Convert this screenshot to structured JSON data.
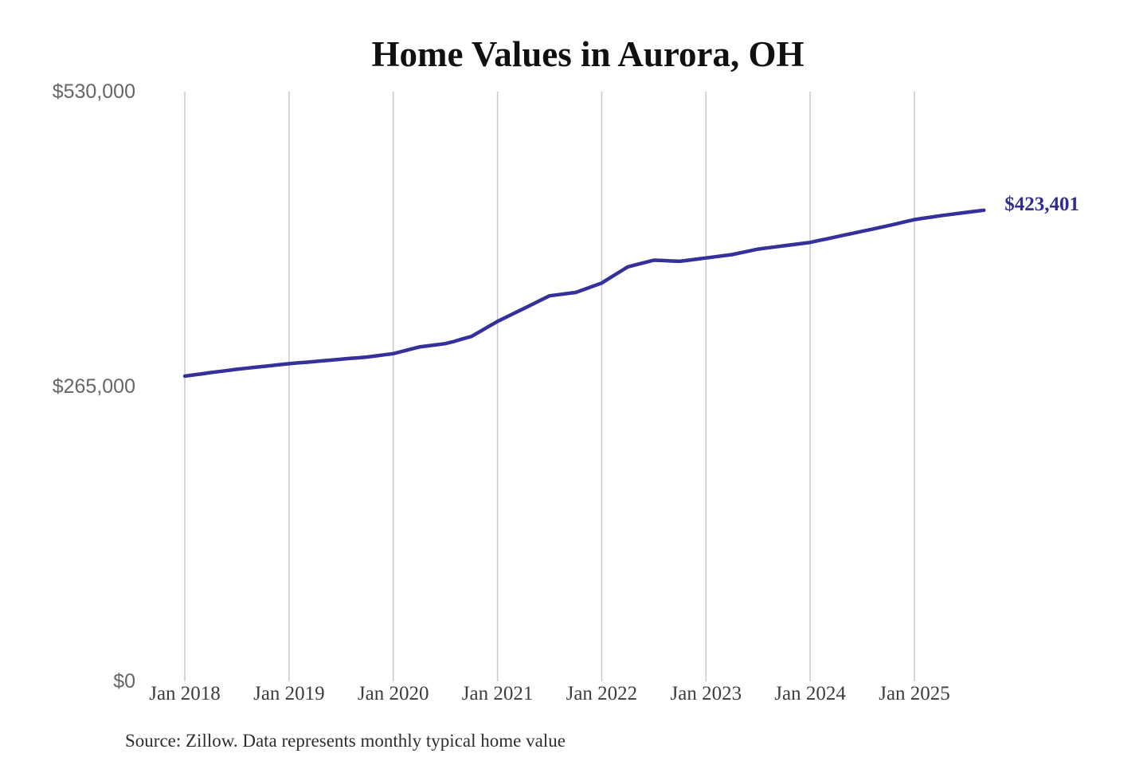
{
  "page": {
    "title": "Home Values in Aurora, OH",
    "source_note": "Source: Zillow. Data represents monthly typical home value"
  },
  "chart_data": {
    "type": "line",
    "title": "Home Values in Aurora, OH",
    "series_name": "Monthly typical home value",
    "unit": "USD",
    "grid": "vertical-only",
    "legend": "none",
    "ylim": [
      0,
      530000
    ],
    "y_ticks": [
      {
        "label": "$0",
        "value": 0
      },
      {
        "label": "$265,000",
        "value": 265000
      },
      {
        "label": "$530,000",
        "value": 530000
      }
    ],
    "x_ticks": [
      {
        "label": "Jan 2018",
        "month_index": 0
      },
      {
        "label": "Jan 2019",
        "month_index": 12
      },
      {
        "label": "Jan 2020",
        "month_index": 24
      },
      {
        "label": "Jan 2021",
        "month_index": 36
      },
      {
        "label": "Jan 2022",
        "month_index": 48
      },
      {
        "label": "Jan 2023",
        "month_index": 60
      },
      {
        "label": "Jan 2024",
        "month_index": 72
      },
      {
        "label": "Jan 2025",
        "month_index": 84
      }
    ],
    "end_label": "$423,401",
    "last_value": 423401,
    "x": [
      "2018-01",
      "2018-02",
      "2018-03",
      "2018-04",
      "2018-05",
      "2018-06",
      "2018-07",
      "2018-08",
      "2018-09",
      "2018-10",
      "2018-11",
      "2018-12",
      "2019-01",
      "2019-02",
      "2019-03",
      "2019-04",
      "2019-05",
      "2019-06",
      "2019-07",
      "2019-08",
      "2019-09",
      "2019-10",
      "2019-11",
      "2019-12",
      "2020-01",
      "2020-02",
      "2020-03",
      "2020-04",
      "2020-05",
      "2020-06",
      "2020-07",
      "2020-08",
      "2020-09",
      "2020-10",
      "2020-11",
      "2020-12",
      "2021-01",
      "2021-02",
      "2021-03",
      "2021-04",
      "2021-05",
      "2021-06",
      "2021-07",
      "2021-08",
      "2021-09",
      "2021-10",
      "2021-11",
      "2021-12",
      "2022-01",
      "2022-02",
      "2022-03",
      "2022-04",
      "2022-05",
      "2022-06",
      "2022-07",
      "2022-08",
      "2022-09",
      "2022-10",
      "2022-11",
      "2022-12",
      "2023-01",
      "2023-02",
      "2023-03",
      "2023-04",
      "2023-05",
      "2023-06",
      "2023-07",
      "2023-08",
      "2023-09",
      "2023-10",
      "2023-11",
      "2023-12",
      "2024-01",
      "2024-02",
      "2024-03",
      "2024-04",
      "2024-05",
      "2024-06",
      "2024-07",
      "2024-08",
      "2024-09",
      "2024-10",
      "2024-11",
      "2024-12",
      "2025-01",
      "2025-02",
      "2025-03",
      "2025-04",
      "2025-05",
      "2025-06",
      "2025-07",
      "2025-08",
      "2025-09"
    ],
    "values": [
      274300,
      275400,
      276400,
      277500,
      278500,
      279500,
      280500,
      281300,
      282200,
      283000,
      283800,
      284700,
      285500,
      286200,
      286800,
      287500,
      288200,
      288800,
      289500,
      290200,
      290800,
      291500,
      292500,
      293500,
      294500,
      296500,
      298500,
      300500,
      301500,
      302500,
      303500,
      305500,
      307800,
      310000,
      314500,
      319000,
      323500,
      327300,
      331200,
      335000,
      338800,
      342700,
      346500,
      347500,
      348500,
      349500,
      352300,
      355200,
      358000,
      362800,
      367700,
      372500,
      374500,
      376500,
      378500,
      378200,
      377800,
      377500,
      378500,
      379500,
      380500,
      381500,
      382500,
      383500,
      385200,
      386800,
      388500,
      389500,
      390500,
      391500,
      392500,
      393500,
      394500,
      396200,
      397800,
      399500,
      401200,
      402800,
      404500,
      406200,
      407800,
      409500,
      411300,
      413200,
      415000,
      416200,
      417300,
      418500,
      419500,
      420500,
      421500,
      422500,
      423401
    ],
    "colors": {
      "line": "#36309b",
      "end_label": "#312c8e",
      "grid": "#c9c9c9",
      "y_tick_text": "#666666",
      "x_tick_text": "#3d3d3d",
      "title_text": "#111111",
      "source_text": "#2e2e2e",
      "background": "#ffffff"
    }
  }
}
